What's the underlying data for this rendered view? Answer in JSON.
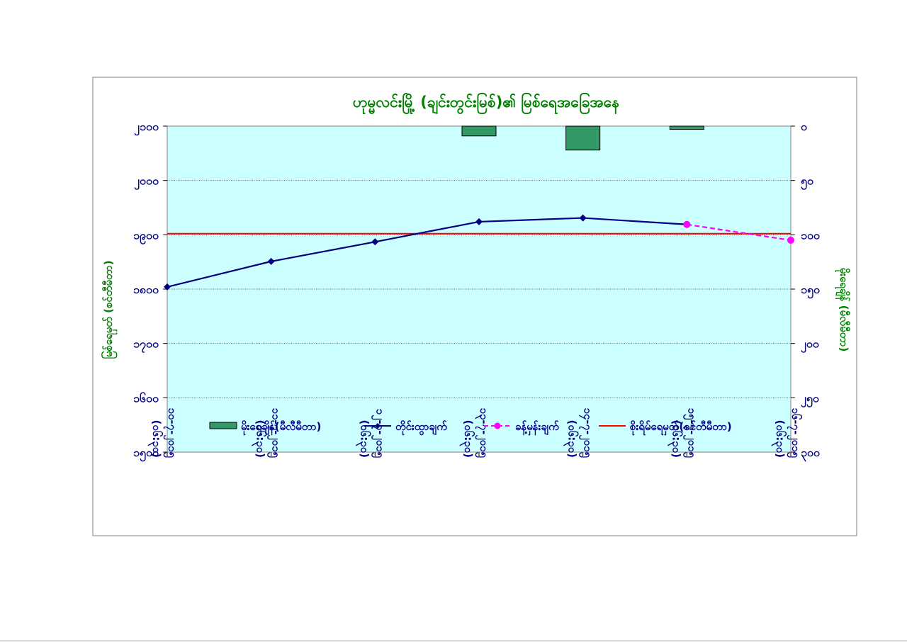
{
  "chart_data": {
    "type": "line",
    "title": "ဟုမ္မလင်းမြို့ (ချင်းတွင်းမြစ်)၏ မြစ်ရေအခြေအနေ",
    "ylabel": "မြစ်ရေမှတ် (စင်တီမီတာ)",
    "y2label": "မိုးရေချိန် (မီလီမီတာ)",
    "ylim": [
      1500,
      2100
    ],
    "yticks": [
      1500,
      1600,
      1700,
      1800,
      1900,
      2000,
      2100
    ],
    "ytick_labels": [
      "၁၅၀၀",
      "၁၆၀၀",
      "၁၇၀၀",
      "၁၈၀၀",
      "၁၉၀၀",
      "၂၀၀၀",
      "၂၁၀၀"
    ],
    "y2lim": [
      0,
      300
    ],
    "y2_inverted": true,
    "y2ticks": [
      0,
      50,
      100,
      150,
      200,
      250,
      300
    ],
    "y2tick_labels": [
      "၀",
      "၅၀",
      "၁၀၀",
      "၁၅၀",
      "၂၀၀",
      "၂၅၀",
      "၃၀၀"
    ],
    "categories": [
      "၁၀-၇-၂၀၁၅ (၀၆:၃၀)",
      "၁၁-၇-၂၀၁၅ (၀၆:၃၀)",
      "၁၂-၇-၂၀၁၅ (၀၆:၃၀)",
      "၁၃-၇-၂၀၁၅ (၀၆:၃၀)",
      "၁၄-၇-၂၀၁၅ (၀၆:၃၀)",
      "၁၅-၇-၂၀၁၅ (၀၆:၃၀)",
      "၁၆-၇-၂၀၁၅ (၀၆:၃၀)"
    ],
    "series": [
      {
        "name": "မိုးရေချိန်(မီလီမီတာ)",
        "kind": "bar",
        "axis": "y2",
        "color": "#339966",
        "values": [
          null,
          null,
          null,
          9,
          22,
          3,
          null
        ]
      },
      {
        "name": "တိုင်းထွာချက်",
        "kind": "line",
        "axis": "y",
        "color": "#000080",
        "values": [
          1804,
          1851,
          1887,
          1924,
          1931,
          1919,
          null
        ]
      },
      {
        "name": "ခန့်မှန်းချက်",
        "kind": "line-dashed",
        "axis": "y",
        "color": "#ff00ff",
        "values": [
          null,
          null,
          null,
          null,
          null,
          1919,
          1890
        ]
      },
      {
        "name": "စိုးရိမ်ရေမှတ်(စင်တီမီတာ)",
        "kind": "hline",
        "axis": "y",
        "color": "#ff0000",
        "value": 1902
      }
    ],
    "grid": true,
    "legend_position": "bottom-inside",
    "colors": {
      "plot_background": "#ccffff",
      "title": "#008000",
      "axis_text": "#000080",
      "y_axis_title": "#008000"
    }
  }
}
